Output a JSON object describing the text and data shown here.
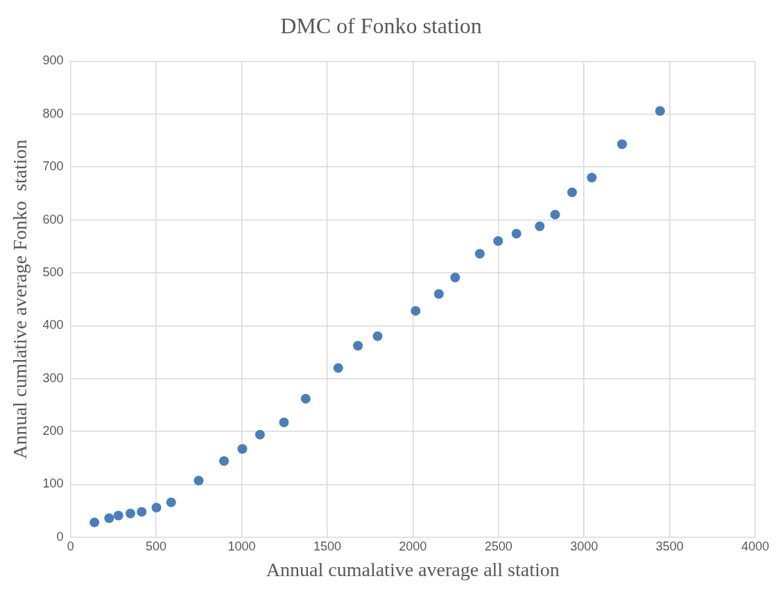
{
  "chart_data": {
    "type": "scatter",
    "title": "DMC of Fonko station",
    "xlabel": "Annual cumalative average all station",
    "ylabel": "Annual cumlative average Fonko  station",
    "x": [
      140,
      226,
      280,
      350,
      416,
      502,
      588,
      749,
      897,
      1004,
      1107,
      1247,
      1374,
      1564,
      1679,
      1794,
      2016,
      2152,
      2247,
      2391,
      2498,
      2605,
      2741,
      2831,
      2930,
      3045,
      3222,
      3444
    ],
    "series": [
      {
        "color": "#4a7ebb",
        "values": [
          28,
          36,
          41,
          45,
          48,
          56,
          66,
          107,
          144,
          167,
          194,
          217,
          262,
          320,
          362,
          380,
          428,
          460,
          491,
          536,
          560,
          574,
          588,
          610,
          652,
          680,
          743,
          806
        ]
      }
    ],
    "xlim": [
      0,
      4000
    ],
    "xticks": [
      0,
      500,
      1000,
      1500,
      2000,
      2500,
      3000,
      3500,
      4000
    ],
    "ylim": [
      0,
      900
    ],
    "yticks": [
      0,
      100,
      200,
      300,
      400,
      500,
      600,
      700,
      800,
      900
    ],
    "grid": true,
    "legend": false,
    "marker": "circle"
  }
}
